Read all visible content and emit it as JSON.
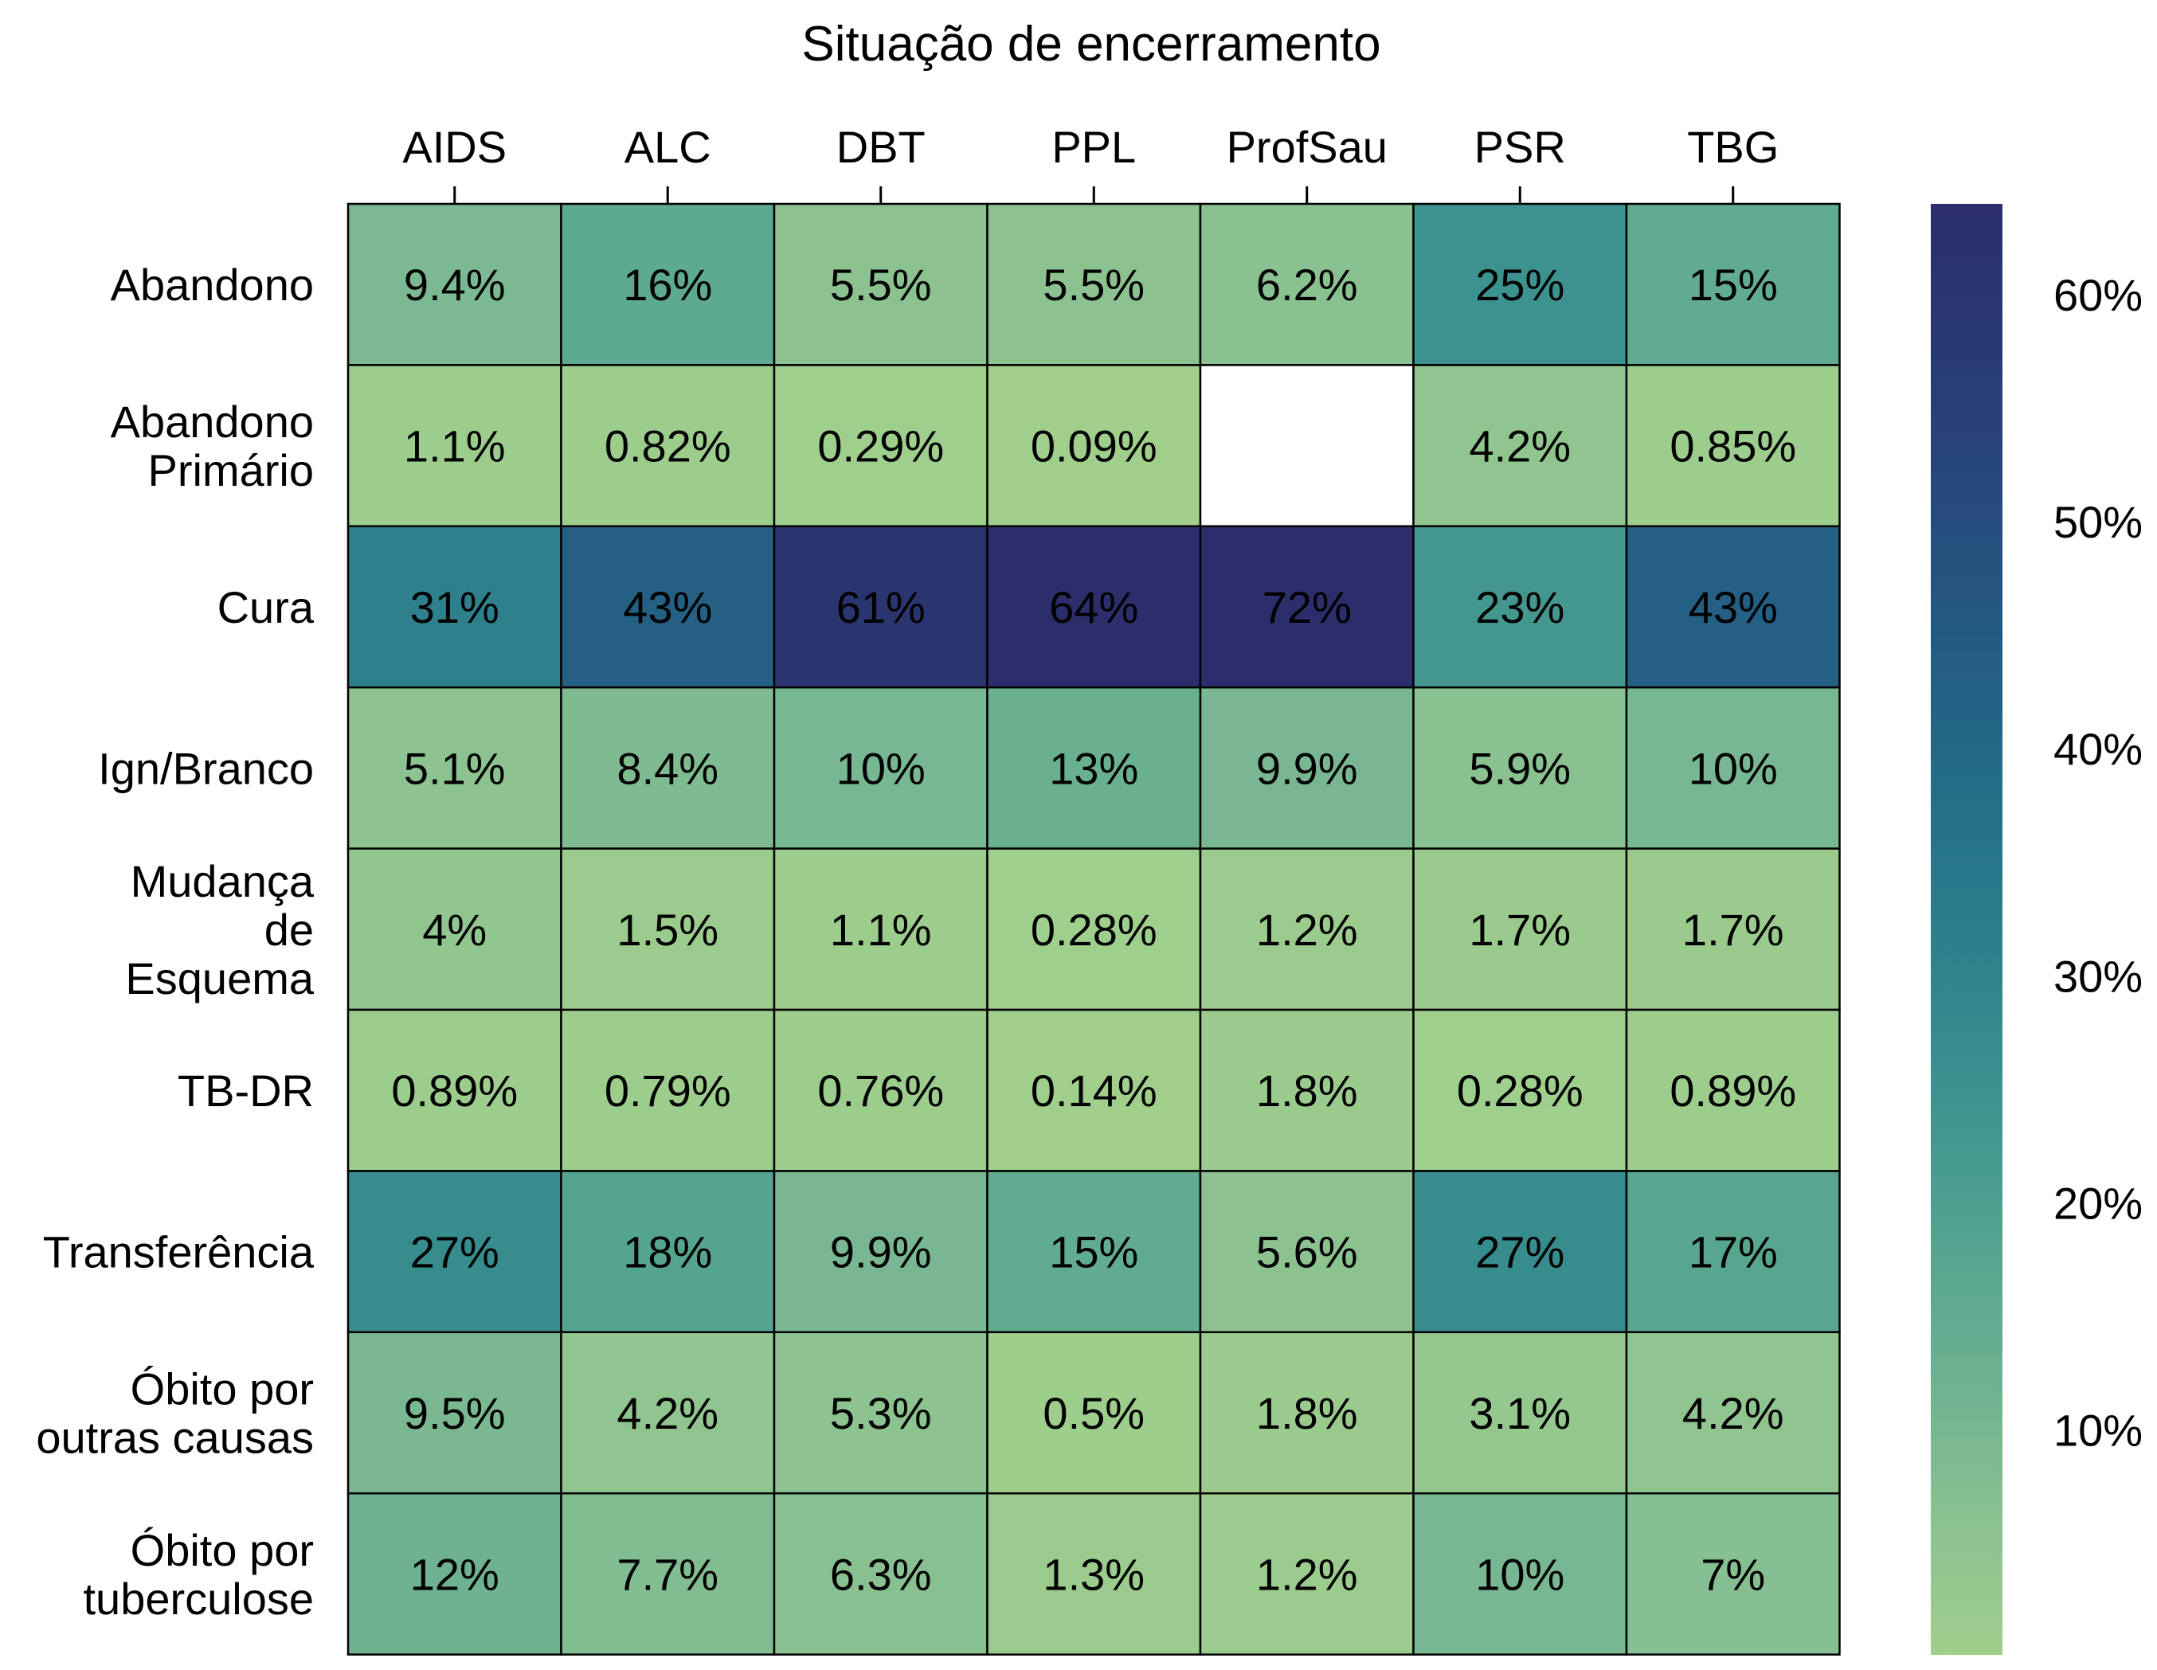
{
  "chart_data": {
    "type": "heatmap",
    "title": "Situação de encerramento",
    "columns": [
      "AIDS",
      "ALC",
      "DBT",
      "PPL",
      "ProfSau",
      "PSR",
      "TBG"
    ],
    "rows": [
      {
        "label": [
          "Abandono"
        ],
        "values": [
          9.4,
          16,
          5.5,
          5.5,
          6.2,
          25,
          15
        ],
        "text": [
          "9.4%",
          "16%",
          "5.5%",
          "5.5%",
          "6.2%",
          "25%",
          "15%"
        ]
      },
      {
        "label": [
          "Abandono",
          "Primário"
        ],
        "values": [
          1.1,
          0.82,
          0.29,
          0.09,
          null,
          4.2,
          0.85
        ],
        "text": [
          "1.1%",
          "0.82%",
          "0.29%",
          "0.09%",
          "",
          "4.2%",
          "0.85%"
        ]
      },
      {
        "label": [
          "Cura"
        ],
        "values": [
          31,
          43,
          61,
          64,
          72,
          23,
          43
        ],
        "text": [
          "31%",
          "43%",
          "61%",
          "64%",
          "72%",
          "23%",
          "43%"
        ]
      },
      {
        "label": [
          "Ign/Branco"
        ],
        "values": [
          5.1,
          8.4,
          10,
          13,
          9.9,
          5.9,
          10
        ],
        "text": [
          "5.1%",
          "8.4%",
          "10%",
          "13%",
          "9.9%",
          "5.9%",
          "10%"
        ]
      },
      {
        "label": [
          "Mudança",
          "de",
          "Esquema"
        ],
        "values": [
          4,
          1.5,
          1.1,
          0.28,
          1.2,
          1.7,
          1.7
        ],
        "text": [
          "4%",
          "1.5%",
          "1.1%",
          "0.28%",
          "1.2%",
          "1.7%",
          "1.7%"
        ]
      },
      {
        "label": [
          "TB-DR"
        ],
        "values": [
          0.89,
          0.79,
          0.76,
          0.14,
          1.8,
          0.28,
          0.89
        ],
        "text": [
          "0.89%",
          "0.79%",
          "0.76%",
          "0.14%",
          "1.8%",
          "0.28%",
          "0.89%"
        ]
      },
      {
        "label": [
          "Transferência"
        ],
        "values": [
          27,
          18,
          9.9,
          15,
          5.6,
          27,
          17
        ],
        "text": [
          "27%",
          "18%",
          "9.9%",
          "15%",
          "5.6%",
          "27%",
          "17%"
        ]
      },
      {
        "label": [
          "Óbito por",
          "outras causas"
        ],
        "values": [
          9.5,
          4.2,
          5.3,
          0.5,
          1.8,
          3.1,
          4.2
        ],
        "text": [
          "9.5%",
          "4.2%",
          "5.3%",
          "0.5%",
          "1.8%",
          "3.1%",
          "4.2%"
        ]
      },
      {
        "label": [
          "Óbito por",
          "tuberculose"
        ],
        "values": [
          12,
          7.7,
          6.3,
          1.3,
          1.2,
          10,
          7
        ],
        "text": [
          "12%",
          "7.7%",
          "6.3%",
          "1.3%",
          "1.2%",
          "10%",
          "7%"
        ]
      }
    ],
    "colorbar": {
      "range": [
        0.09,
        64
      ],
      "ticks": [
        10,
        20,
        30,
        40,
        50,
        60
      ],
      "tick_labels": [
        "10%",
        "20%",
        "30%",
        "40%",
        "50%",
        "60%"
      ],
      "colormap": [
        "#a0cf8c",
        "#88c091",
        "#6ab091",
        "#50a190",
        "#3a908f",
        "#2c7e8b",
        "#236d86",
        "#235b82",
        "#26497c",
        "#293a73",
        "#2b2e6b"
      ]
    },
    "xaxis_position": "top",
    "grid": false,
    "legend": "colorbar right"
  }
}
